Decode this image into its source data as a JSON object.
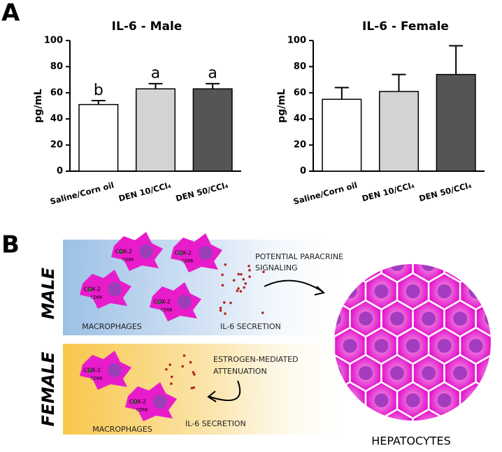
{
  "panels": {
    "a": "A",
    "b": "B"
  },
  "chart_data": [
    {
      "type": "bar",
      "title": "IL-6 - Male",
      "y_label": "pg/mL",
      "categories": [
        "Saline/Corn oil",
        "DEN 10/CCl₄",
        "DEN 50/CCl₄"
      ],
      "values": [
        51,
        63,
        63
      ],
      "errors": [
        3,
        4,
        4
      ],
      "annotations": [
        "b",
        "a",
        "a"
      ],
      "colors": [
        "#ffffff",
        "#d3d3d3",
        "#555555"
      ],
      "ylim": [
        0,
        100
      ],
      "yticks": [
        0,
        20,
        40,
        60,
        80,
        100
      ]
    },
    {
      "type": "bar",
      "title": "IL-6 - Female",
      "y_label": "pg/mL",
      "categories": [
        "Saline/Corn oil",
        "DEN 10/CCl₄",
        "DEN 50/CCl₄"
      ],
      "values": [
        55,
        61,
        74
      ],
      "errors": [
        9,
        13,
        22
      ],
      "colors": [
        "#ffffff",
        "#d3d3d3",
        "#555555"
      ],
      "ylim": [
        0,
        100
      ],
      "yticks": [
        0,
        20,
        40,
        60,
        80,
        100
      ]
    }
  ],
  "diagram": {
    "male": {
      "label": "MALE",
      "signal_line1": "POTENTIAL PARACRINE",
      "signal_line2": "SIGNALING",
      "secretion": "IL-6 SECRETION",
      "cells": "MACROPHAGES"
    },
    "female": {
      "label": "FEMALE",
      "note_line1": "ESTROGEN-MEDIATED",
      "note_line2": "ATTENUATION",
      "secretion": "IL-6 SECRETION",
      "cells": "MACROPHAGES"
    },
    "markers": {
      "cox2": "COX-2",
      "cd68": "CD68"
    },
    "target": "HEPATOCYTES"
  }
}
